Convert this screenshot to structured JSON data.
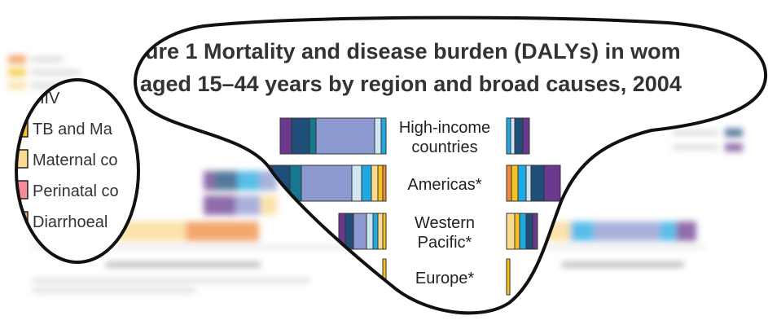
{
  "figure": {
    "title_line1": "ure 1 Mortality and disease burden (DALYs) in wom",
    "title_line2": "aged 15–44 years by region and broad causes, 2004"
  },
  "legend": {
    "items": [
      {
        "label": "HIV",
        "color": "#f08a3c"
      },
      {
        "label": "TB and Ma",
        "color": "#f6c21f"
      },
      {
        "label": "Maternal co",
        "color": "#fbd98f"
      },
      {
        "label": "Perinatal co",
        "color": "#f48b95"
      },
      {
        "label": "Diarrhoeal",
        "color": "#f7b26e"
      }
    ]
  },
  "colors": {
    "purple": "#6b3a8f",
    "navy": "#1f4e79",
    "teal": "#17778f",
    "sky": "#20a9e1",
    "periwinkle": "#8c98d0",
    "paleblue": "#cfe6f5",
    "orange": "#f08a3c",
    "yellow": "#f6c21f",
    "cream": "#fbd98f",
    "outline": "#111111"
  },
  "chart_data": {
    "type": "bar",
    "orientation": "horizontal",
    "categories": [
      "High-income countries",
      "Americas*",
      "Western Pacific*",
      "Europe*"
    ],
    "category_labels": [
      [
        "High-income",
        "countries"
      ],
      [
        "Americas*"
      ],
      [
        "Western",
        "Pacific*"
      ],
      [
        "Europe*"
      ]
    ],
    "left_panel": {
      "segments": [
        [
          {
            "color": "#6b3a8f",
            "v": 14
          },
          {
            "color": "#1f4e79",
            "v": 22
          },
          {
            "color": "#17778f",
            "v": 8
          },
          {
            "color": "#8c98d0",
            "v": 72
          },
          {
            "color": "#cfe6f5",
            "v": 8
          },
          {
            "color": "#20a9e1",
            "v": 6
          }
        ],
        [
          {
            "color": "#6b3a8f",
            "v": 10
          },
          {
            "color": "#1f4e79",
            "v": 22
          },
          {
            "color": "#17778f",
            "v": 14
          },
          {
            "color": "#8c98d0",
            "v": 62
          },
          {
            "color": "#cfe6f5",
            "v": 12
          },
          {
            "color": "#20a9e1",
            "v": 12
          },
          {
            "color": "#fbd98f",
            "v": 8
          },
          {
            "color": "#f6c21f",
            "v": 6
          },
          {
            "color": "#f08a3c",
            "v": 4
          }
        ],
        [
          {
            "color": "#6b3a8f",
            "v": 8
          },
          {
            "color": "#1f4e79",
            "v": 10
          },
          {
            "color": "#8c98d0",
            "v": 16
          },
          {
            "color": "#cfe6f5",
            "v": 8
          },
          {
            "color": "#20a9e1",
            "v": 6
          },
          {
            "color": "#fbd98f",
            "v": 6
          },
          {
            "color": "#f6c21f",
            "v": 4
          }
        ],
        [
          {
            "color": "#f6c21f",
            "v": 4
          }
        ]
      ]
    },
    "right_panel": {
      "segments": [
        [
          {
            "color": "#20a9e1",
            "v": 5
          },
          {
            "color": "#cfe6f5",
            "v": 5
          },
          {
            "color": "#1f4e79",
            "v": 10
          },
          {
            "color": "#6b3a8f",
            "v": 8
          }
        ],
        [
          {
            "color": "#f08a3c",
            "v": 6
          },
          {
            "color": "#f6c21f",
            "v": 8
          },
          {
            "color": "#20a9e1",
            "v": 10
          },
          {
            "color": "#cfe6f5",
            "v": 6
          },
          {
            "color": "#1f4e79",
            "v": 16
          },
          {
            "color": "#6b3a8f",
            "v": 20
          }
        ],
        [
          {
            "color": "#fbd98f",
            "v": 10
          },
          {
            "color": "#f6c21f",
            "v": 6
          },
          {
            "color": "#20a9e1",
            "v": 8
          },
          {
            "color": "#1f4e79",
            "v": 8
          },
          {
            "color": "#6b3a8f",
            "v": 6
          }
        ],
        [
          {
            "color": "#f6c21f",
            "v": 4
          }
        ]
      ]
    },
    "blurred_background": {
      "left_rows": [
        [
          {
            "color": "#6b3a8f",
            "v": 12
          },
          {
            "color": "#1f4e79",
            "v": 30
          },
          {
            "color": "#20a9e1",
            "v": 28
          },
          {
            "color": "#8c98d0",
            "v": 20
          }
        ],
        [
          {
            "color": "#6b3a8f",
            "v": 40
          },
          {
            "color": "#8c98d0",
            "v": 30
          },
          {
            "color": "#fbd98f",
            "v": 20
          }
        ],
        [
          {
            "color": "#6b3a8f",
            "v": 10
          },
          {
            "color": "#fbd98f",
            "v": 170
          },
          {
            "color": "#f08a3c",
            "v": 90
          }
        ]
      ],
      "right_rows": [
        [
          {
            "color": "#fbd98f",
            "v": 40
          },
          {
            "color": "#20a9e1",
            "v": 30
          },
          {
            "color": "#8c98d0",
            "v": 80
          },
          {
            "color": "#20a9e1",
            "v": 20
          },
          {
            "color": "#6b3a8f",
            "v": 25
          }
        ]
      ]
    }
  }
}
